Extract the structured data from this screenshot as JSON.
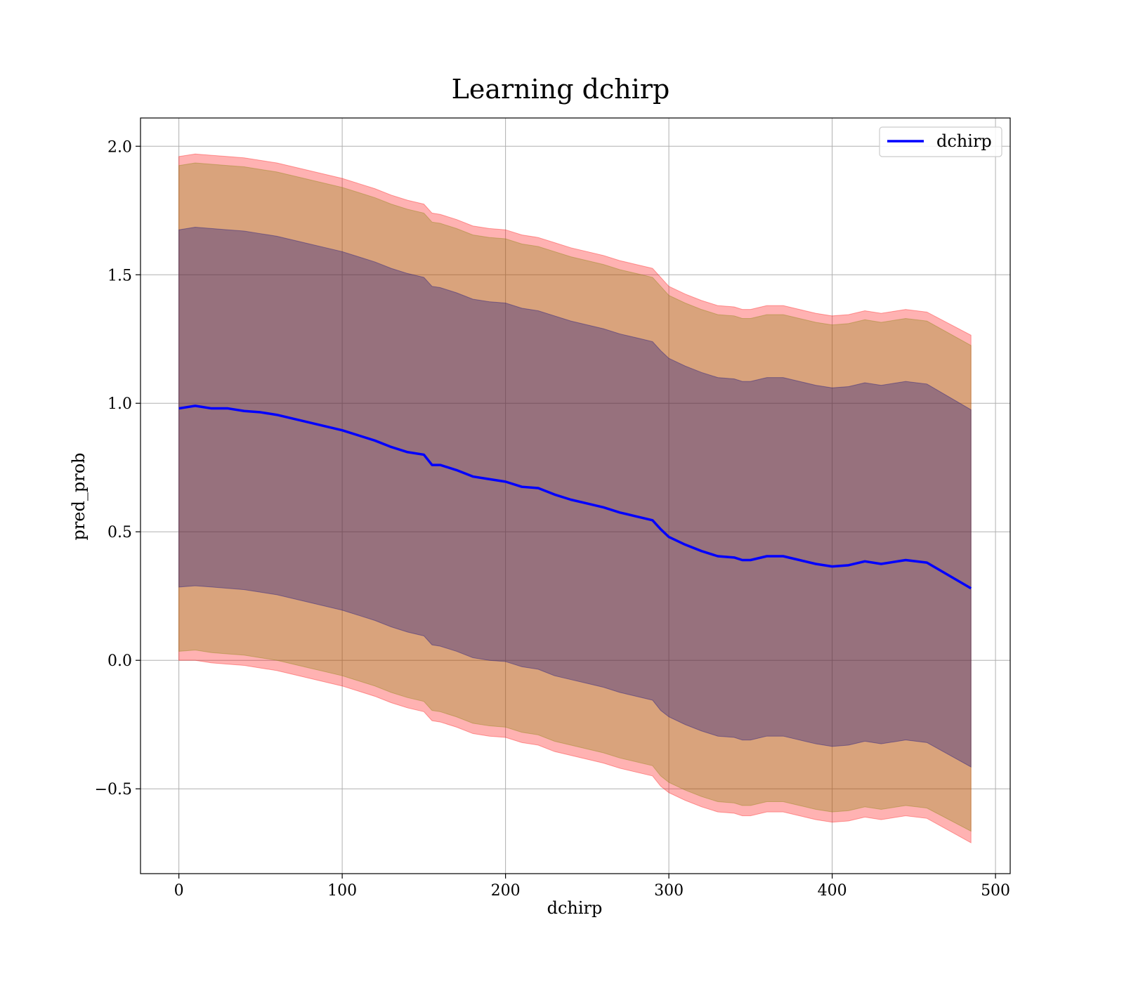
{
  "chart_data": {
    "type": "line",
    "title": "Learning dchirp",
    "xlabel": "dchirp",
    "ylabel": "pred_prob",
    "xlim": [
      -23.5,
      509
    ],
    "ylim": [
      -0.83,
      2.11
    ],
    "xticks": [
      0,
      100,
      200,
      300,
      400,
      500
    ],
    "xtick_labels": [
      "0",
      "100",
      "200",
      "300",
      "400",
      "500"
    ],
    "yticks": [
      -0.5,
      0.0,
      0.5,
      1.0,
      1.5,
      2.0
    ],
    "ytick_labels": [
      "−0.5",
      "0.0",
      "0.5",
      "1.0",
      "1.5",
      "2.0"
    ],
    "grid": true,
    "legend_position": "top-right",
    "colors": {
      "line": "#0000ff",
      "band_outer": "#ff0000",
      "band_middle": "#a35a26",
      "band_inner": "#3a1046",
      "grid": "#b0b0b0",
      "axes": "#000000"
    },
    "series": [
      {
        "name": "dchirp",
        "x": [
          0,
          10,
          20,
          30,
          40,
          50,
          60,
          70,
          80,
          90,
          100,
          110,
          120,
          130,
          140,
          150,
          155,
          160,
          170,
          180,
          190,
          200,
          210,
          220,
          230,
          240,
          250,
          260,
          270,
          280,
          290,
          295,
          300,
          310,
          320,
          330,
          340,
          345,
          350,
          360,
          370,
          380,
          390,
          400,
          410,
          420,
          430,
          445,
          458,
          485
        ],
        "y": [
          0.98,
          0.99,
          0.98,
          0.98,
          0.97,
          0.965,
          0.955,
          0.94,
          0.925,
          0.91,
          0.895,
          0.875,
          0.855,
          0.83,
          0.81,
          0.8,
          0.76,
          0.76,
          0.74,
          0.715,
          0.705,
          0.695,
          0.675,
          0.67,
          0.645,
          0.625,
          0.61,
          0.595,
          0.575,
          0.56,
          0.545,
          0.51,
          0.48,
          0.45,
          0.425,
          0.405,
          0.4,
          0.39,
          0.39,
          0.405,
          0.405,
          0.39,
          0.375,
          0.365,
          0.37,
          0.385,
          0.375,
          0.39,
          0.38,
          0.28
        ]
      }
    ],
    "bands": [
      {
        "color": "#ff0000",
        "opacity": 0.3,
        "lower": [
          0.0,
          0.0,
          -0.01,
          -0.015,
          -0.02,
          -0.03,
          -0.04,
          -0.055,
          -0.07,
          -0.085,
          -0.1,
          -0.12,
          -0.14,
          -0.165,
          -0.185,
          -0.2,
          -0.235,
          -0.24,
          -0.26,
          -0.285,
          -0.295,
          -0.3,
          -0.32,
          -0.33,
          -0.355,
          -0.37,
          -0.385,
          -0.4,
          -0.42,
          -0.435,
          -0.45,
          -0.49,
          -0.515,
          -0.545,
          -0.57,
          -0.59,
          -0.595,
          -0.605,
          -0.605,
          -0.59,
          -0.59,
          -0.605,
          -0.62,
          -0.63,
          -0.625,
          -0.61,
          -0.62,
          -0.605,
          -0.615,
          -0.71
        ],
        "upper": [
          1.96,
          1.97,
          1.965,
          1.96,
          1.955,
          1.945,
          1.935,
          1.92,
          1.905,
          1.89,
          1.875,
          1.855,
          1.835,
          1.81,
          1.79,
          1.775,
          1.74,
          1.735,
          1.715,
          1.69,
          1.68,
          1.675,
          1.655,
          1.645,
          1.625,
          1.605,
          1.59,
          1.575,
          1.555,
          1.54,
          1.525,
          1.49,
          1.455,
          1.425,
          1.4,
          1.38,
          1.375,
          1.365,
          1.365,
          1.38,
          1.38,
          1.365,
          1.35,
          1.34,
          1.345,
          1.36,
          1.35,
          1.365,
          1.355,
          1.265
        ]
      },
      {
        "color": "#808000",
        "opacity": 0.3,
        "lower": [
          0.035,
          0.04,
          0.03,
          0.025,
          0.02,
          0.01,
          0.0,
          -0.015,
          -0.03,
          -0.045,
          -0.06,
          -0.08,
          -0.1,
          -0.125,
          -0.145,
          -0.16,
          -0.195,
          -0.2,
          -0.22,
          -0.245,
          -0.255,
          -0.26,
          -0.28,
          -0.29,
          -0.315,
          -0.33,
          -0.345,
          -0.36,
          -0.38,
          -0.395,
          -0.41,
          -0.45,
          -0.475,
          -0.505,
          -0.53,
          -0.55,
          -0.555,
          -0.565,
          -0.565,
          -0.55,
          -0.55,
          -0.565,
          -0.58,
          -0.59,
          -0.585,
          -0.57,
          -0.58,
          -0.565,
          -0.575,
          -0.665
        ],
        "upper": [
          1.925,
          1.935,
          1.93,
          1.925,
          1.92,
          1.91,
          1.9,
          1.885,
          1.87,
          1.855,
          1.84,
          1.82,
          1.8,
          1.775,
          1.755,
          1.74,
          1.705,
          1.7,
          1.68,
          1.655,
          1.645,
          1.64,
          1.62,
          1.61,
          1.59,
          1.57,
          1.555,
          1.54,
          1.52,
          1.505,
          1.49,
          1.455,
          1.42,
          1.39,
          1.365,
          1.345,
          1.34,
          1.33,
          1.33,
          1.345,
          1.345,
          1.33,
          1.315,
          1.305,
          1.31,
          1.325,
          1.315,
          1.33,
          1.32,
          1.225
        ]
      },
      {
        "color": "#000080",
        "opacity": 0.3,
        "lower": [
          0.285,
          0.29,
          0.285,
          0.28,
          0.275,
          0.265,
          0.255,
          0.24,
          0.225,
          0.21,
          0.195,
          0.175,
          0.155,
          0.13,
          0.11,
          0.095,
          0.06,
          0.055,
          0.035,
          0.01,
          0.0,
          -0.005,
          -0.025,
          -0.035,
          -0.06,
          -0.075,
          -0.09,
          -0.105,
          -0.125,
          -0.14,
          -0.155,
          -0.195,
          -0.22,
          -0.25,
          -0.275,
          -0.295,
          -0.3,
          -0.31,
          -0.31,
          -0.295,
          -0.295,
          -0.31,
          -0.325,
          -0.335,
          -0.33,
          -0.315,
          -0.325,
          -0.31,
          -0.32,
          -0.415
        ],
        "upper": [
          1.675,
          1.685,
          1.68,
          1.675,
          1.67,
          1.66,
          1.65,
          1.635,
          1.62,
          1.605,
          1.59,
          1.57,
          1.55,
          1.525,
          1.505,
          1.49,
          1.455,
          1.45,
          1.43,
          1.405,
          1.395,
          1.39,
          1.37,
          1.36,
          1.34,
          1.32,
          1.305,
          1.29,
          1.27,
          1.255,
          1.24,
          1.205,
          1.175,
          1.145,
          1.12,
          1.1,
          1.095,
          1.085,
          1.085,
          1.1,
          1.1,
          1.085,
          1.07,
          1.06,
          1.065,
          1.08,
          1.07,
          1.085,
          1.075,
          0.975
        ]
      }
    ]
  }
}
